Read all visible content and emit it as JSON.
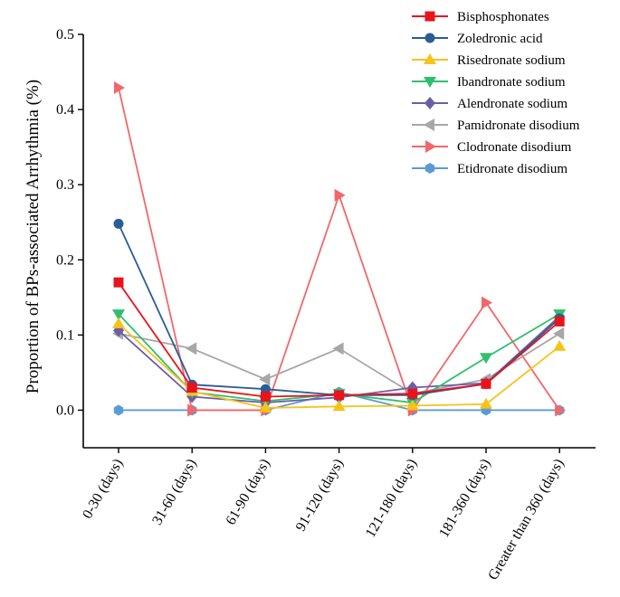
{
  "chart_data": {
    "type": "line",
    "title": "",
    "xlabel": "",
    "ylabel": "Proportion of BPs-associated Arrhythmia (%)",
    "ylim": [
      -0.05,
      0.5
    ],
    "yticks": [
      "0.0",
      "0.1",
      "0.2",
      "0.3",
      "0.4",
      "0.5"
    ],
    "ytick_values": [
      0,
      0.1,
      0.2,
      0.3,
      0.4,
      0.5
    ],
    "categories": [
      "0-30 (days)",
      "31-60 (days)",
      "61-90 (days)",
      "91-120 (days)",
      "121-180 (days)",
      "181-360 (days)",
      "Greater than 360 (days)"
    ],
    "legend_position": "top-right",
    "series": [
      {
        "name": "Bisphosphonates",
        "color": "#e8141c",
        "marker": "square",
        "values": [
          0.17,
          0.03,
          0.018,
          0.02,
          0.022,
          0.035,
          0.118
        ]
      },
      {
        "name": "Zoledronic acid",
        "color": "#2a5d93",
        "marker": "circle",
        "values": [
          0.248,
          0.034,
          0.028,
          0.02,
          0.02,
          0.035,
          0.122
        ]
      },
      {
        "name": "Risedronate sodium",
        "color": "#f7c318",
        "marker": "triangle-up",
        "values": [
          0.115,
          0.025,
          0.003,
          0.005,
          0.006,
          0.008,
          0.085
        ]
      },
      {
        "name": "Ibandronate sodium",
        "color": "#2fc06e",
        "marker": "triangle-down",
        "values": [
          0.128,
          0.024,
          0.012,
          0.022,
          0.01,
          0.07,
          0.128
        ]
      },
      {
        "name": "Alendronate sodium",
        "color": "#6b5ea8",
        "marker": "diamond",
        "values": [
          0.106,
          0.018,
          0.01,
          0.017,
          0.03,
          0.036,
          0.125
        ]
      },
      {
        "name": "Pamidronate disodium",
        "color": "#a7a7a7",
        "marker": "triangle-left",
        "values": [
          0.102,
          0.082,
          0.041,
          0.082,
          0.022,
          0.041,
          0.102
        ]
      },
      {
        "name": "Clodronate disodium",
        "color": "#f2676b",
        "marker": "triangle-right",
        "values": [
          0.429,
          0.0,
          0.0,
          0.286,
          0.0,
          0.143,
          0.0
        ]
      },
      {
        "name": "Etidronate disodium",
        "color": "#5b9bd5",
        "marker": "hexagon",
        "values": [
          0.0,
          0.0,
          0.0,
          0.024,
          0.0,
          0.0,
          0.0
        ]
      }
    ]
  }
}
